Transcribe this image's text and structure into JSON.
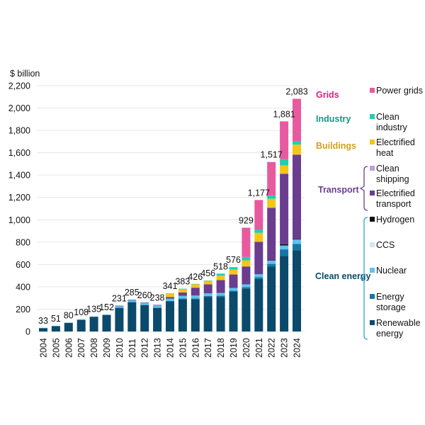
{
  "chart_data": {
    "type": "bar",
    "stacked": true,
    "unit_label": "$ billion",
    "title": "",
    "xlabel": "",
    "ylabel": "$ billion",
    "ylim": [
      0,
      2200
    ],
    "yticks": [
      0,
      200,
      400,
      600,
      800,
      1000,
      1200,
      1400,
      1600,
      1800,
      2000,
      2200
    ],
    "ytick_labels": [
      "0",
      "200",
      "400",
      "600",
      "800",
      "1,000",
      "1,200",
      "1,400",
      "1,600",
      "1,800",
      "2,000",
      "2,200"
    ],
    "grid": true,
    "legend_position": "right",
    "categories": [
      "2004",
      "2005",
      "2006",
      "2007",
      "2008",
      "2009",
      "2010",
      "2011",
      "2012",
      "2013",
      "2014",
      "2015",
      "2016",
      "2017",
      "2018",
      "2019",
      "2020",
      "2021",
      "2022",
      "2023",
      "2024"
    ],
    "totals": [
      33,
      51,
      80,
      108,
      135,
      152,
      231,
      285,
      260,
      238,
      341,
      383,
      426,
      456,
      518,
      576,
      929,
      1177,
      1517,
      1881,
      2083
    ],
    "total_labels": [
      "33",
      "51",
      "80",
      "108",
      "135",
      "152",
      "231",
      "285",
      "260",
      "238",
      "341",
      "383",
      "426",
      "456",
      "518",
      "576",
      "929",
      "1,177",
      "1,517",
      "1,881",
      "2,083"
    ],
    "series": [
      {
        "name": "Renewable energy",
        "group": "Clean energy",
        "color": "#0b4a6b",
        "values": [
          31,
          49,
          78,
          105,
          132,
          148,
          210,
          262,
          236,
          211,
          270,
          290,
          290,
          310,
          310,
          355,
          385,
          470,
          580,
          675,
          728
        ]
      },
      {
        "name": "Energy storage",
        "group": "Clean energy",
        "color": "#1577a8",
        "values": [
          0,
          0,
          0,
          0,
          0,
          0,
          2,
          3,
          3,
          3,
          4,
          5,
          6,
          7,
          10,
          10,
          12,
          15,
          25,
          60,
          55
        ]
      },
      {
        "name": "Nuclear",
        "group": "Clean energy",
        "color": "#5ec2ee",
        "values": [
          2,
          2,
          2,
          3,
          3,
          4,
          17,
          17,
          17,
          19,
          20,
          25,
          26,
          25,
          25,
          25,
          25,
          28,
          30,
          35,
          40
        ]
      },
      {
        "name": "CCS",
        "group": "Clean energy",
        "color": "#cde9f6",
        "values": [
          0,
          0,
          0,
          0,
          0,
          0,
          0,
          0,
          0,
          0,
          0,
          0,
          0,
          0,
          0,
          0,
          0,
          0,
          0,
          0,
          0
        ]
      },
      {
        "name": "Hydrogen",
        "group": "Clean energy",
        "color": "#111111",
        "values": [
          0,
          0,
          0,
          0,
          0,
          0,
          0,
          0,
          0,
          0,
          0,
          0,
          0,
          0,
          0,
          0,
          0,
          0,
          3,
          12,
          5
        ]
      },
      {
        "name": "Electrified transport",
        "group": "Transport",
        "color": "#6a3d8f",
        "values": [
          0,
          0,
          0,
          0,
          0,
          0,
          2,
          3,
          4,
          5,
          15,
          30,
          70,
          80,
          115,
          120,
          160,
          290,
          470,
          630,
          755
        ]
      },
      {
        "name": "Clean shipping",
        "group": "Transport",
        "color": "#b9a3d6",
        "values": [
          0,
          0,
          0,
          0,
          0,
          0,
          0,
          0,
          0,
          0,
          0,
          0,
          0,
          0,
          0,
          0,
          0,
          0,
          0,
          0,
          0
        ]
      },
      {
        "name": "Electrified heat",
        "group": "Buildings",
        "color": "#f5c518",
        "values": [
          0,
          0,
          0,
          0,
          0,
          0,
          0,
          0,
          0,
          0,
          30,
          31,
          32,
          32,
          40,
          45,
          55,
          80,
          80,
          75,
          90
        ]
      },
      {
        "name": "Clean industry",
        "group": "Industry",
        "color": "#1fcfb0",
        "values": [
          0,
          0,
          0,
          0,
          0,
          0,
          0,
          0,
          0,
          0,
          2,
          2,
          2,
          2,
          18,
          21,
          30,
          30,
          30,
          55,
          30
        ]
      },
      {
        "name": "Power grids",
        "group": "Grids",
        "color": "#e85aa0",
        "values": [
          0,
          0,
          0,
          0,
          0,
          0,
          0,
          0,
          0,
          0,
          0,
          0,
          0,
          0,
          0,
          0,
          262,
          264,
          299,
          339,
          380
        ]
      }
    ],
    "legend": {
      "groups": [
        {
          "label": "Grids",
          "color": "#d6247f",
          "items": [
            "Power grids"
          ]
        },
        {
          "label": "Industry",
          "color": "#0f9a86",
          "items": [
            "Clean industry"
          ]
        },
        {
          "label": "Buildings",
          "color": "#d4a017",
          "items": [
            "Electrified heat"
          ]
        },
        {
          "label": "Transport",
          "color": "#6a3d8f",
          "bracket": true,
          "items": [
            "Clean shipping",
            "Electrified transport"
          ]
        },
        {
          "label": "Clean energy",
          "color": "#0b4a6b",
          "bracket_color": "#2aa4dd",
          "bracket": true,
          "items": [
            "Hydrogen",
            "CCS",
            "Nuclear",
            "Energy storage",
            "Renewable energy"
          ]
        }
      ],
      "item_lines": {
        "Power grids": [
          "Power grids"
        ],
        "Clean industry": [
          "Clean",
          "industry"
        ],
        "Electrified heat": [
          "Electrified",
          "heat"
        ],
        "Clean shipping": [
          "Clean",
          "shipping"
        ],
        "Electrified transport": [
          "Electrified",
          "transport"
        ],
        "Hydrogen": [
          "Hydrogen"
        ],
        "CCS": [
          "CCS"
        ],
        "Nuclear": [
          "Nuclear"
        ],
        "Energy storage": [
          "Energy",
          "storage"
        ],
        "Renewable energy": [
          "Renewable",
          "energy"
        ]
      }
    }
  }
}
